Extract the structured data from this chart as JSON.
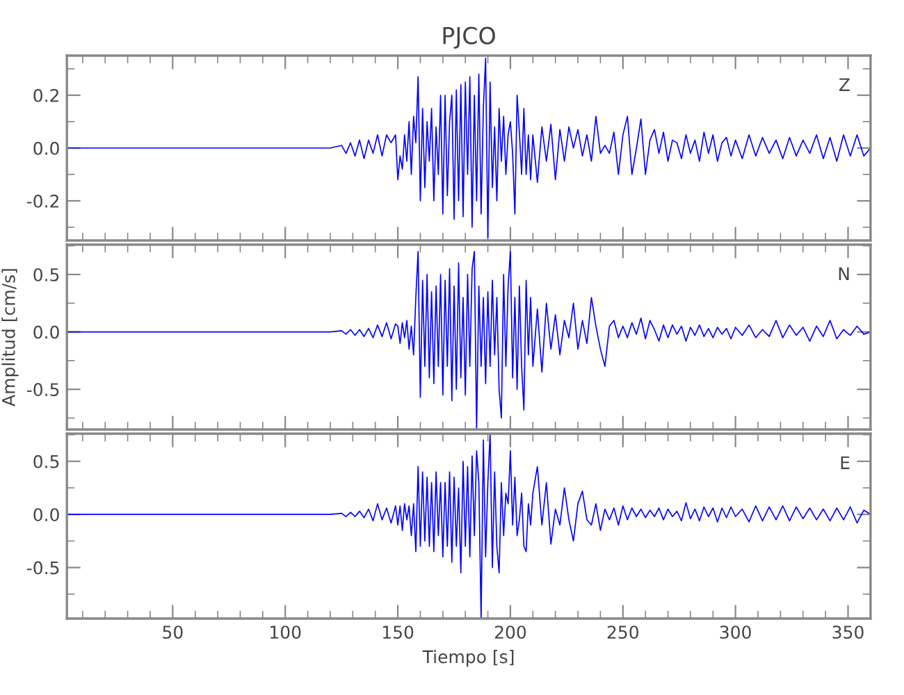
{
  "chart_data": [
    {
      "type": "line",
      "title": "PJCO",
      "tick_labels": "y",
      "annotations": [
        "Z"
      ],
      "xlim": [
        3,
        360
      ],
      "xticks": [
        {
          "value": 10,
          "label": null
        },
        {
          "value": 20,
          "label": null
        },
        {
          "value": 30,
          "label": null
        },
        {
          "value": 40,
          "label": null
        },
        50,
        {
          "value": 60,
          "label": null
        },
        {
          "value": 70,
          "label": null
        },
        {
          "value": 80,
          "label": null
        },
        {
          "value": 90,
          "label": null
        },
        100,
        {
          "value": 110,
          "label": null
        },
        {
          "value": 120,
          "label": null
        },
        {
          "value": 130,
          "label": null
        },
        {
          "value": 140,
          "label": null
        },
        150,
        {
          "value": 160,
          "label": null
        },
        {
          "value": 170,
          "label": null
        },
        {
          "value": 180,
          "label": null
        },
        {
          "value": 190,
          "label": null
        },
        200,
        {
          "value": 210,
          "label": null
        },
        {
          "value": 220,
          "label": null
        },
        {
          "value": 230,
          "label": null
        },
        {
          "value": 240,
          "label": null
        },
        250,
        {
          "value": 260,
          "label": null
        },
        {
          "value": 270,
          "label": null
        },
        {
          "value": 280,
          "label": null
        },
        {
          "value": 290,
          "label": null
        },
        300,
        {
          "value": 310,
          "label": null
        },
        {
          "value": 320,
          "label": null
        },
        {
          "value": 330,
          "label": null
        },
        {
          "value": 340,
          "label": null
        },
        350
      ],
      "ylim": [
        -0.35,
        0.35
      ],
      "yticks": [
        {
          "value": -0.3,
          "label": null
        },
        -0.2,
        {
          "value": -0.1,
          "label": null
        },
        {
          "value": 0.0,
          "label": "0.0"
        },
        {
          "value": 0.1,
          "label": null
        },
        0.2,
        {
          "value": 0.3,
          "label": null
        }
      ],
      "series": [
        {
          "color": "#0000ff",
          "x": [
            3,
            50,
            100,
            120,
            125,
            127,
            129,
            131,
            133,
            135,
            137,
            139,
            141,
            143,
            145,
            147,
            149,
            150,
            151,
            152,
            153,
            154,
            155,
            156,
            157,
            158,
            159,
            160,
            161,
            162,
            163,
            164,
            165,
            166,
            167,
            168,
            169,
            170,
            171,
            172,
            173,
            174,
            175,
            176,
            177,
            178,
            179,
            180,
            181,
            182,
            183,
            184,
            185,
            186,
            187,
            188,
            189,
            190,
            191,
            192,
            193,
            194,
            195,
            196,
            197,
            198,
            199,
            200,
            201,
            202,
            203,
            204,
            205,
            206,
            207,
            208,
            209,
            210,
            212,
            214,
            216,
            218,
            220,
            222,
            224,
            226,
            228,
            230,
            232,
            234,
            236,
            238,
            240,
            242,
            244,
            246,
            248,
            250,
            252,
            254,
            256,
            258,
            260,
            262,
            264,
            266,
            268,
            270,
            272,
            274,
            276,
            278,
            280,
            282,
            284,
            286,
            288,
            290,
            292,
            294,
            296,
            298,
            300,
            303,
            306,
            309,
            312,
            315,
            318,
            321,
            324,
            327,
            330,
            333,
            336,
            339,
            342,
            345,
            348,
            351,
            354,
            357,
            360
          ],
          "values": [
            0,
            0,
            0,
            0,
            0.01,
            -0.02,
            0.02,
            -0.03,
            0.03,
            -0.04,
            0.03,
            -0.02,
            0.05,
            -0.03,
            0.05,
            0.02,
            0.05,
            -0.12,
            -0.03,
            -0.08,
            0.05,
            -0.05,
            0.1,
            -0.1,
            0.12,
            0.02,
            0.27,
            -0.2,
            0.15,
            -0.15,
            0.1,
            -0.05,
            0.15,
            -0.2,
            0.08,
            -0.1,
            0.2,
            -0.25,
            0.2,
            -0.18,
            0.1,
            0.2,
            -0.27,
            0.22,
            -0.2,
            0.24,
            -0.26,
            0.25,
            -0.1,
            0.27,
            -0.3,
            0.2,
            -0.2,
            0.28,
            -0.25,
            0.15,
            0.34,
            -0.34,
            0.25,
            -0.15,
            0.08,
            -0.2,
            0.15,
            -0.05,
            0.12,
            -0.1,
            0.05,
            0.1,
            -0.02,
            -0.25,
            0.2,
            0.06,
            -0.1,
            0.15,
            -0.1,
            0.05,
            -0.12,
            0.05,
            -0.13,
            0.08,
            -0.05,
            0.09,
            -0.12,
            0.07,
            -0.05,
            0.08,
            0.0,
            0.07,
            -0.03,
            0.05,
            -0.05,
            0.12,
            -0.02,
            0.01,
            -0.02,
            0.06,
            -0.1,
            0.05,
            0.12,
            -0.1,
            0.0,
            0.11,
            -0.1,
            0.03,
            0.07,
            -0.02,
            0.06,
            -0.05,
            0.03,
            0.02,
            -0.04,
            0.05,
            -0.02,
            0.03,
            -0.05,
            0.06,
            -0.02,
            0.05,
            -0.05,
            0.02,
            0.04,
            -0.03,
            0.03,
            -0.04,
            0.05,
            -0.03,
            0.04,
            -0.02,
            0.03,
            -0.04,
            0.04,
            -0.03,
            0.03,
            -0.02,
            0.05,
            -0.04,
            0.04,
            -0.05,
            0.05,
            -0.03,
            0.05,
            -0.03,
            0.0
          ]
        }
      ]
    },
    {
      "type": "line",
      "ylabel": "Amplitud [cm/s]",
      "tick_labels": "y",
      "annotations": [
        "N"
      ],
      "xlim": [
        3,
        360
      ],
      "xticks": [
        {
          "value": 10,
          "label": null
        },
        {
          "value": 20,
          "label": null
        },
        {
          "value": 30,
          "label": null
        },
        {
          "value": 40,
          "label": null
        },
        50,
        {
          "value": 60,
          "label": null
        },
        {
          "value": 70,
          "label": null
        },
        {
          "value": 80,
          "label": null
        },
        {
          "value": 90,
          "label": null
        },
        100,
        {
          "value": 110,
          "label": null
        },
        {
          "value": 120,
          "label": null
        },
        {
          "value": 130,
          "label": null
        },
        {
          "value": 140,
          "label": null
        },
        150,
        {
          "value": 160,
          "label": null
        },
        {
          "value": 170,
          "label": null
        },
        {
          "value": 180,
          "label": null
        },
        {
          "value": 190,
          "label": null
        },
        200,
        {
          "value": 210,
          "label": null
        },
        {
          "value": 220,
          "label": null
        },
        {
          "value": 230,
          "label": null
        },
        {
          "value": 240,
          "label": null
        },
        250,
        {
          "value": 260,
          "label": null
        },
        {
          "value": 270,
          "label": null
        },
        {
          "value": 280,
          "label": null
        },
        {
          "value": 290,
          "label": null
        },
        300,
        {
          "value": 310,
          "label": null
        },
        {
          "value": 320,
          "label": null
        },
        {
          "value": 330,
          "label": null
        },
        {
          "value": 340,
          "label": null
        },
        350
      ],
      "ylim": [
        -0.85,
        0.76
      ],
      "yticks": [
        {
          "value": -0.75,
          "label": null
        },
        -0.5,
        {
          "value": -0.25,
          "label": null
        },
        {
          "value": 0.0,
          "label": "0.0"
        },
        {
          "value": 0.25,
          "label": null
        },
        0.5,
        {
          "value": 0.75,
          "label": null
        }
      ],
      "series": [
        {
          "color": "#0000ff",
          "x": [
            3,
            50,
            100,
            120,
            125,
            127,
            129,
            131,
            133,
            135,
            137,
            139,
            141,
            143,
            145,
            147,
            149,
            150,
            151,
            152,
            153,
            154,
            155,
            156,
            157,
            158,
            159,
            160,
            161,
            162,
            163,
            164,
            165,
            166,
            167,
            168,
            169,
            170,
            171,
            172,
            173,
            174,
            175,
            176,
            177,
            178,
            179,
            180,
            181,
            182,
            183,
            184,
            185,
            186,
            187,
            188,
            189,
            190,
            191,
            192,
            193,
            194,
            195,
            196,
            197,
            198,
            199,
            200,
            201,
            202,
            203,
            204,
            205,
            206,
            207,
            208,
            209,
            210,
            212,
            214,
            216,
            218,
            220,
            222,
            224,
            226,
            228,
            230,
            232,
            234,
            236,
            238,
            240,
            242,
            244,
            246,
            248,
            250,
            252,
            254,
            256,
            258,
            260,
            262,
            264,
            266,
            268,
            270,
            272,
            274,
            276,
            278,
            280,
            282,
            284,
            286,
            288,
            290,
            292,
            294,
            296,
            298,
            300,
            303,
            306,
            309,
            312,
            315,
            318,
            321,
            324,
            327,
            330,
            333,
            336,
            339,
            342,
            345,
            348,
            351,
            354,
            357,
            360
          ],
          "values": [
            0,
            0,
            0,
            0,
            0.01,
            -0.02,
            0.02,
            -0.03,
            0.02,
            -0.04,
            0.03,
            -0.05,
            0.06,
            -0.04,
            0.08,
            -0.06,
            0.07,
            0.05,
            -0.1,
            0.08,
            -0.05,
            0.1,
            -0.15,
            0.05,
            -0.2,
            0.3,
            0.7,
            -0.57,
            0.45,
            -0.3,
            0.5,
            -0.4,
            0.35,
            -0.45,
            0.4,
            -0.3,
            0.5,
            -0.55,
            0.45,
            -0.3,
            0.55,
            -0.6,
            0.4,
            -0.5,
            0.6,
            -0.4,
            0.3,
            -0.55,
            0.5,
            -0.3,
            0.55,
            0.7,
            -0.85,
            0.4,
            -0.3,
            0.3,
            -0.45,
            0.35,
            -0.3,
            0.45,
            -0.2,
            0.3,
            -0.5,
            -0.75,
            0.5,
            -0.3,
            0.4,
            0.7,
            -0.4,
            0.3,
            -0.5,
            0.4,
            -0.3,
            -0.68,
            0.45,
            -0.2,
            0.3,
            -0.3,
            0.2,
            -0.35,
            0.25,
            -0.15,
            0.15,
            -0.2,
            0.1,
            -0.05,
            0.25,
            -0.15,
            0.1,
            -0.1,
            0.3,
            0.05,
            -0.15,
            -0.3,
            0.05,
            0.1,
            -0.05,
            0.05,
            -0.05,
            0.08,
            -0.02,
            0.12,
            -0.06,
            0.1,
            0.02,
            -0.08,
            0.06,
            -0.05,
            0.06,
            -0.02,
            0.05,
            -0.08,
            0.04,
            -0.03,
            0.06,
            -0.04,
            0.03,
            -0.05,
            0.04,
            -0.02,
            0.03,
            -0.06,
            0.04,
            -0.03,
            0.06,
            -0.05,
            0.02,
            -0.04,
            0.1,
            -0.05,
            0.06,
            -0.03,
            0.04,
            -0.08,
            0.05,
            -0.04,
            0.1,
            -0.06,
            0.02,
            -0.03,
            0.05,
            -0.02,
            0.0
          ]
        }
      ]
    },
    {
      "type": "line",
      "xlabel": "Tiempo [s]",
      "annotations": [
        "E"
      ],
      "xlim": [
        3,
        360
      ],
      "xticks": [
        {
          "value": 10,
          "label": null
        },
        {
          "value": 20,
          "label": null
        },
        {
          "value": 30,
          "label": null
        },
        {
          "value": 40,
          "label": null
        },
        50,
        {
          "value": 60,
          "label": null
        },
        {
          "value": 70,
          "label": null
        },
        {
          "value": 80,
          "label": null
        },
        {
          "value": 90,
          "label": null
        },
        100,
        {
          "value": 110,
          "label": null
        },
        {
          "value": 120,
          "label": null
        },
        {
          "value": 130,
          "label": null
        },
        {
          "value": 140,
          "label": null
        },
        150,
        {
          "value": 160,
          "label": null
        },
        {
          "value": 170,
          "label": null
        },
        {
          "value": 180,
          "label": null
        },
        {
          "value": 190,
          "label": null
        },
        200,
        {
          "value": 210,
          "label": null
        },
        {
          "value": 220,
          "label": null
        },
        {
          "value": 230,
          "label": null
        },
        {
          "value": 240,
          "label": null
        },
        250,
        {
          "value": 260,
          "label": null
        },
        {
          "value": 270,
          "label": null
        },
        {
          "value": 280,
          "label": null
        },
        {
          "value": 290,
          "label": null
        },
        300,
        {
          "value": 310,
          "label": null
        },
        {
          "value": 320,
          "label": null
        },
        {
          "value": 330,
          "label": null
        },
        {
          "value": 340,
          "label": null
        },
        350
      ],
      "ylim": [
        -0.98,
        0.76
      ],
      "yticks": [
        {
          "value": -0.75,
          "label": null
        },
        -0.5,
        {
          "value": -0.25,
          "label": null
        },
        {
          "value": 0.0,
          "label": "0.0"
        },
        {
          "value": 0.25,
          "label": null
        },
        0.5,
        {
          "value": 0.75,
          "label": null
        }
      ],
      "series": [
        {
          "color": "#0000ff",
          "x": [
            3,
            50,
            100,
            120,
            125,
            127,
            129,
            131,
            133,
            135,
            137,
            139,
            141,
            143,
            145,
            147,
            149,
            150,
            151,
            152,
            153,
            154,
            155,
            156,
            157,
            158,
            159,
            160,
            161,
            162,
            163,
            164,
            165,
            166,
            167,
            168,
            169,
            170,
            171,
            172,
            173,
            174,
            175,
            176,
            177,
            178,
            179,
            180,
            181,
            182,
            183,
            184,
            185,
            186,
            187,
            188,
            189,
            190,
            191,
            192,
            193,
            194,
            195,
            196,
            197,
            198,
            199,
            200,
            201,
            202,
            203,
            204,
            205,
            206,
            207,
            208,
            209,
            210,
            212,
            214,
            216,
            218,
            220,
            222,
            224,
            226,
            228,
            230,
            232,
            234,
            236,
            238,
            240,
            242,
            244,
            246,
            248,
            250,
            252,
            254,
            256,
            258,
            260,
            262,
            264,
            266,
            268,
            270,
            272,
            274,
            276,
            278,
            280,
            282,
            284,
            286,
            288,
            290,
            292,
            294,
            296,
            298,
            300,
            303,
            306,
            309,
            312,
            315,
            318,
            321,
            324,
            327,
            330,
            333,
            336,
            339,
            342,
            345,
            348,
            351,
            354,
            357,
            360
          ],
          "values": [
            0,
            0,
            0,
            0,
            0.01,
            -0.02,
            0.02,
            -0.02,
            0.03,
            -0.03,
            0.05,
            -0.06,
            0.1,
            -0.05,
            0.06,
            -0.08,
            0.08,
            -0.1,
            0.08,
            -0.15,
            0.1,
            -0.05,
            0.08,
            -0.2,
            0.1,
            -0.35,
            0.45,
            -0.3,
            0.4,
            -0.25,
            0.35,
            -0.3,
            0.3,
            -0.35,
            0.4,
            -0.2,
            0.3,
            -0.4,
            0.3,
            -0.3,
            0.4,
            -0.45,
            0.35,
            -0.3,
            0.25,
            -0.55,
            0.5,
            -0.3,
            0.45,
            -0.4,
            0.55,
            -0.2,
            0.6,
            0.3,
            -0.98,
            0.7,
            -0.4,
            0.3,
            0.76,
            -0.5,
            0.4,
            -0.3,
            -0.55,
            0.3,
            -0.2,
            0.2,
            0.1,
            0.6,
            -0.1,
            0.35,
            -0.2,
            -0.05,
            0.2,
            -0.3,
            -0.35,
            0.1,
            -0.1,
            0.2,
            0.45,
            -0.1,
            0.3,
            -0.28,
            0.05,
            -0.1,
            0.25,
            -0.05,
            -0.25,
            0.1,
            0.22,
            -0.05,
            -0.1,
            0.1,
            -0.15,
            0.05,
            -0.05,
            0.06,
            -0.1,
            0.08,
            -0.05,
            0.06,
            -0.02,
            0.05,
            -0.03,
            0.04,
            -0.02,
            0.06,
            -0.05,
            0.05,
            -0.02,
            0.03,
            -0.06,
            0.11,
            -0.04,
            0.05,
            -0.06,
            0.07,
            -0.02,
            0.06,
            -0.07,
            0.06,
            -0.03,
            0.07,
            -0.02,
            0.05,
            -0.07,
            0.08,
            -0.06,
            0.07,
            -0.05,
            0.08,
            -0.06,
            0.07,
            -0.04,
            0.06,
            -0.05,
            0.05,
            -0.06,
            0.06,
            -0.05,
            0.07,
            -0.08,
            0.04,
            0.0
          ]
        }
      ]
    }
  ]
}
